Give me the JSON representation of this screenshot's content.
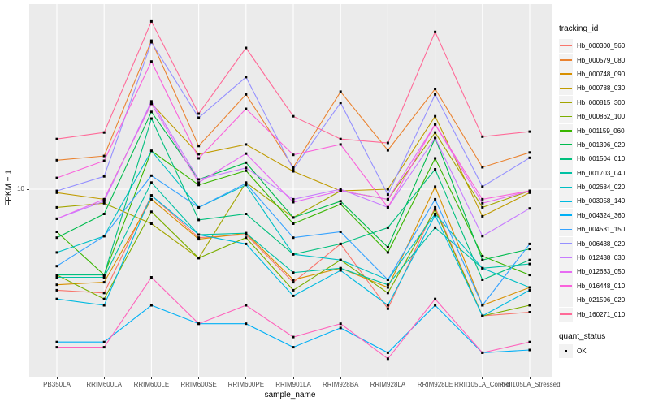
{
  "chart_data": {
    "type": "line",
    "title": "",
    "xlabel": "sample_name",
    "ylabel": "FPKM + 1",
    "y_scale": "log10",
    "grid": "major-on-white",
    "panel_bg": "#EBEBEB",
    "gridline_color": "#FFFFFF",
    "ylim": [
      1.2,
      80
    ],
    "y_ticks": [
      {
        "label": "10",
        "value": 10
      }
    ],
    "legend_position": "right",
    "legend_title": "tracking_id",
    "categories": [
      "PB350LA",
      "RRIM600LA",
      "RRIM600LE",
      "RRIM600SE",
      "RRIM600PE",
      "RRIM901LA",
      "RRIM928BA",
      "RRIM928LA",
      "RRIM928LE",
      "RRII105LA_Control",
      "RRII105LA_Stressed"
    ],
    "series": [
      {
        "name": "Hb_000300_560",
        "color": "#F8766D",
        "values": [
          3.1,
          3.0,
          9.3,
          5.7,
          5.9,
          3.4,
          5.3,
          2.5,
          8.1,
          2.3,
          2.4
        ]
      },
      {
        "name": "Hb_000579_080",
        "color": "#EA8331",
        "values": [
          14.0,
          14.7,
          56.0,
          16.5,
          30.0,
          12.9,
          31.0,
          15.7,
          32.0,
          12.9,
          15.3
        ]
      },
      {
        "name": "Hb_000748_090",
        "color": "#D89000",
        "values": [
          3.3,
          3.4,
          8.9,
          5.6,
          6.0,
          3.5,
          4.0,
          3.2,
          10.3,
          2.6,
          3.2
        ]
      },
      {
        "name": "Hb_000788_030",
        "color": "#C09B00",
        "values": [
          9.6,
          8.9,
          27.0,
          15.0,
          16.8,
          12.3,
          9.8,
          10.0,
          23.3,
          7.3,
          9.6
        ]
      },
      {
        "name": "Hb_000815_300",
        "color": "#A3A500",
        "values": [
          8.1,
          8.5,
          6.7,
          4.5,
          10.8,
          7.2,
          9.8,
          8.9,
          19.3,
          8.1,
          9.8
        ]
      },
      {
        "name": "Hb_000862_100",
        "color": "#7CAE00",
        "values": [
          3.7,
          2.8,
          7.7,
          4.5,
          5.7,
          3.1,
          4.4,
          3.0,
          7.9,
          2.3,
          2.6
        ]
      },
      {
        "name": "Hb_001159_060",
        "color": "#39B600",
        "values": [
          6.1,
          3.7,
          15.6,
          10.5,
          12.4,
          6.7,
          8.4,
          4.8,
          14.3,
          4.6,
          3.7
        ]
      },
      {
        "name": "Hb_001396_020",
        "color": "#00BB4E",
        "values": [
          5.7,
          7.5,
          24.5,
          11.2,
          13.6,
          7.2,
          8.7,
          5.1,
          18.1,
          4.4,
          5.0
        ]
      },
      {
        "name": "Hb_001504_010",
        "color": "#00BF7D",
        "values": [
          3.7,
          3.7,
          22.7,
          7.0,
          7.5,
          4.7,
          5.3,
          6.4,
          12.6,
          3.5,
          4.4
        ]
      },
      {
        "name": "Hb_001703_040",
        "color": "#00C1A3",
        "values": [
          3.6,
          3.6,
          10.8,
          5.9,
          6.0,
          3.8,
          4.0,
          3.3,
          6.4,
          4.0,
          4.2
        ]
      },
      {
        "name": "Hb_002684_020",
        "color": "#00BFC4",
        "values": [
          4.8,
          5.8,
          15.6,
          8.1,
          10.5,
          4.7,
          4.4,
          3.5,
          7.5,
          4.0,
          3.2
        ]
      },
      {
        "name": "Hb_003058_140",
        "color": "#00BAE0",
        "values": [
          2.8,
          2.6,
          9.3,
          5.9,
          5.3,
          2.9,
          3.9,
          2.6,
          7.4,
          2.3,
          3.1
        ]
      },
      {
        "name": "Hb_004324_360",
        "color": "#00B0F6",
        "values": [
          1.7,
          1.7,
          2.6,
          2.1,
          2.1,
          1.6,
          2.0,
          1.5,
          2.6,
          1.5,
          1.55
        ]
      },
      {
        "name": "Hb_004531_150",
        "color": "#35A2FF",
        "values": [
          4.1,
          5.8,
          11.7,
          8.1,
          10.7,
          5.7,
          6.1,
          3.5,
          8.9,
          2.6,
          5.3
        ]
      },
      {
        "name": "Hb_006438_020",
        "color": "#9590FF",
        "values": [
          9.8,
          11.6,
          55.0,
          22.9,
          36.7,
          12.6,
          27.2,
          9.4,
          30.0,
          10.3,
          14.4
        ]
      },
      {
        "name": "Hb_012438_030",
        "color": "#C77CFF",
        "values": [
          7.1,
          8.7,
          27.7,
          11.2,
          12.8,
          8.9,
          10.0,
          8.1,
          18.1,
          5.8,
          8.0
        ]
      },
      {
        "name": "Hb_012633_050",
        "color": "#E76BF3",
        "values": [
          7.1,
          8.9,
          26.9,
          10.8,
          15.1,
          8.6,
          9.8,
          8.9,
          21.2,
          8.5,
          9.8
        ]
      },
      {
        "name": "Hb_016448_010",
        "color": "#FA62DB",
        "values": [
          11.4,
          13.9,
          44.0,
          14.3,
          25.4,
          14.9,
          16.8,
          8.1,
          21.2,
          8.9,
          9.8
        ]
      },
      {
        "name": "Hb_021596_020",
        "color": "#FF62BC",
        "values": [
          1.6,
          1.6,
          3.6,
          2.1,
          2.6,
          1.8,
          2.1,
          1.4,
          2.8,
          1.5,
          1.7
        ]
      },
      {
        "name": "Hb_160271_010",
        "color": "#FF6A98",
        "values": [
          17.9,
          19.3,
          70.0,
          24.0,
          51.5,
          23.3,
          17.9,
          17.1,
          62.0,
          18.4,
          19.5
        ]
      }
    ],
    "legend2": {
      "title": "quant_status",
      "items": [
        {
          "label": "OK",
          "marker": "black-square"
        }
      ]
    }
  }
}
